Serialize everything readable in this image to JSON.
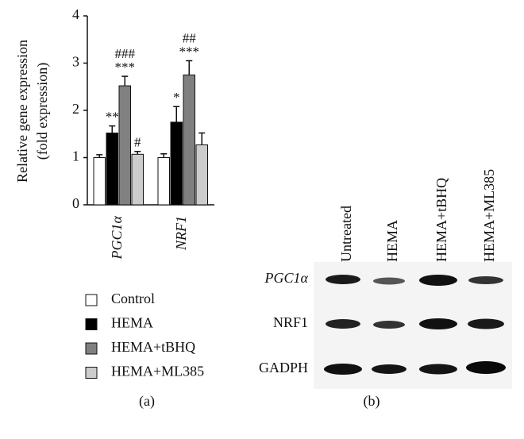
{
  "chart_data": {
    "type": "bar",
    "y_label": [
      "Relative gene expression",
      "(fold expression)"
    ],
    "categories": [
      "PGC1α",
      "NRF1"
    ],
    "series": [
      {
        "name": "Control",
        "color": "#ffffff",
        "values": [
          1.0,
          1.0
        ],
        "errors": [
          0.06,
          0.08
        ],
        "significance": [
          [],
          []
        ]
      },
      {
        "name": "HEMA",
        "color": "#000000",
        "values": [
          1.52,
          1.75
        ],
        "errors": [
          0.15,
          0.33
        ],
        "significance": [
          [
            "**"
          ],
          [
            "*"
          ]
        ]
      },
      {
        "name": "HEMA+tBHQ",
        "color": "#808080",
        "values": [
          2.52,
          2.75
        ],
        "errors": [
          0.2,
          0.3
        ],
        "significance": [
          [
            "***",
            "###"
          ],
          [
            "***",
            "##"
          ]
        ]
      },
      {
        "name": "HEMA+ML385",
        "color": "#cccccc",
        "values": [
          1.07,
          1.27
        ],
        "errors": [
          0.06,
          0.25
        ],
        "significance": [
          [
            "#"
          ],
          []
        ]
      }
    ],
    "ylim": [
      0,
      4
    ],
    "yticks": [
      0,
      1,
      2,
      3,
      4
    ],
    "grid": false
  },
  "blot": {
    "lanes": [
      "Untreated",
      "HEMA",
      "HEMA+tBHQ",
      "HEMA+ML385"
    ],
    "rows": [
      "PGC1α",
      "NRF1",
      "GADPH"
    ]
  },
  "panels": [
    "(a)",
    "(b)"
  ]
}
